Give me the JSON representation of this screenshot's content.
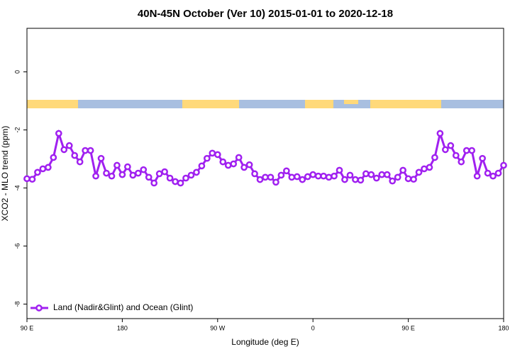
{
  "chart_data": {
    "type": "line",
    "title": "40N-45N October (Ver 10)   2015-01-01 to 2020-12-18",
    "x_label": "Longitude (deg E)",
    "y_label": "XCO2 - MLO trend (ppm)",
    "x": [
      90,
      95,
      100,
      105,
      110,
      115,
      120,
      125,
      130,
      135,
      140,
      145,
      150,
      155,
      160,
      165,
      170,
      175,
      180,
      185,
      190,
      195,
      200,
      205,
      210,
      215,
      220,
      225,
      230,
      235,
      240,
      245,
      250,
      255,
      260,
      265,
      270,
      275,
      280,
      285,
      290,
      295,
      300,
      305,
      310,
      315,
      320,
      325,
      330,
      335,
      340,
      345,
      350,
      355,
      360,
      365,
      370,
      375,
      380,
      385,
      390,
      395,
      400,
      405,
      410,
      415,
      420,
      425,
      430,
      435,
      440,
      445,
      450,
      455,
      460,
      465,
      470,
      475,
      480,
      485,
      490,
      495,
      500,
      505,
      510,
      515,
      520,
      525,
      530,
      535,
      540
    ],
    "series": [
      {
        "name": "Land (Nadir&Glint) and Ocean (Glint)",
        "color": "#a020f0",
        "values": [
          -3.68,
          -3.7,
          -3.46,
          -3.34,
          -3.29,
          -2.95,
          -2.12,
          -2.68,
          -2.54,
          -2.88,
          -3.1,
          -2.71,
          -2.71,
          -3.59,
          -2.98,
          -3.49,
          -3.59,
          -3.22,
          -3.54,
          -3.27,
          -3.56,
          -3.49,
          -3.37,
          -3.63,
          -3.83,
          -3.51,
          -3.44,
          -3.66,
          -3.78,
          -3.83,
          -3.66,
          -3.56,
          -3.46,
          -3.24,
          -2.98,
          -2.8,
          -2.85,
          -3.1,
          -3.22,
          -3.17,
          -2.95,
          -3.29,
          -3.2,
          -3.51,
          -3.71,
          -3.63,
          -3.63,
          -3.8,
          -3.56,
          -3.41,
          -3.63,
          -3.61,
          -3.71,
          -3.61,
          -3.54,
          -3.59,
          -3.59,
          -3.63,
          -3.59,
          -3.39,
          -3.71,
          -3.56,
          -3.71,
          -3.73,
          -3.51,
          -3.54,
          -3.66,
          -3.54,
          -3.54,
          -3.76,
          -3.63,
          -3.39,
          -3.68,
          -3.7,
          -3.46,
          -3.34,
          -3.29,
          -2.95,
          -2.12,
          -2.68,
          -2.54,
          -2.88,
          -3.1,
          -2.71,
          -2.71,
          -3.59,
          -2.98,
          -3.49,
          -3.59,
          -3.49,
          -3.22
        ]
      }
    ],
    "xlim": [
      90,
      540
    ],
    "xticks": [
      {
        "value": 90,
        "label": "90 E"
      },
      180,
      {
        "value": 270,
        "label": "90 W"
      },
      {
        "value": 360,
        "label": "0"
      },
      {
        "value": 450,
        "label": "90 E"
      },
      {
        "value": 540,
        "label": "180"
      }
    ],
    "ylim": [
      -8.5,
      1.5
    ],
    "yticks": [
      0,
      -2,
      -4,
      -6,
      -8
    ],
    "legend": "lower left"
  }
}
